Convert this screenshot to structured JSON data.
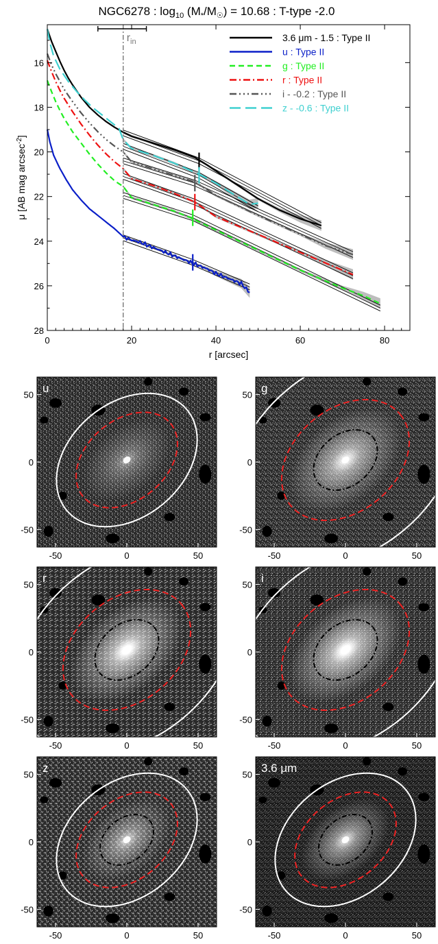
{
  "colors": {
    "spitzer": "#000000",
    "u": "#0a1fc8",
    "g": "#22ee22",
    "r": "#ee1111",
    "i": "#555555",
    "z": "#3fd0d0",
    "fit": "#000000",
    "band": "#9a9a9a",
    "rin": "#777777",
    "ellipse_outer": "#ffffff",
    "ellipse_mid": "#ee2222",
    "ellipse_inner": "#000000"
  },
  "title_parts": {
    "prefix": "NGC6278 : log",
    "sub": "10",
    "mid": " (M",
    "star": "*",
    "slash": "/M",
    "sun": "☉",
    "suffix": ") = 10.68 : T-type -2.0"
  },
  "rin_label": {
    "main": "r",
    "sub": "in"
  },
  "chart_data": [
    {
      "type": "line",
      "xlabel": "r [arcsec]",
      "ylabel_parts": {
        "main": "μ [AB mag arcsec",
        "sup": "-2",
        "end": "]"
      },
      "xlim": [
        0,
        86
      ],
      "ylim": [
        28,
        14.3
      ],
      "y_inverted": true,
      "xticks": [
        0,
        20,
        40,
        60,
        80
      ],
      "yticks": [
        16,
        18,
        20,
        22,
        24,
        26,
        28
      ],
      "rin": 18,
      "rin_range": [
        12,
        23.5
      ],
      "legend_position": "top-right",
      "series": [
        {
          "key": "spitzer",
          "name": "3.6 μm - 1.5 : Type II",
          "dash": "",
          "profile": [
            [
              0,
              14.5
            ],
            [
              1,
              15.05
            ],
            [
              2,
              15.5
            ],
            [
              3,
              15.95
            ],
            [
              4,
              16.35
            ],
            [
              5,
              16.7
            ],
            [
              6,
              17
            ],
            [
              8,
              17.55
            ],
            [
              10,
              18
            ],
            [
              12,
              18.35
            ],
            [
              14,
              18.65
            ],
            [
              16,
              18.9
            ],
            [
              18,
              19.12
            ],
            [
              20,
              19.3
            ],
            [
              25,
              19.6
            ],
            [
              30,
              19.9
            ],
            [
              35,
              20.25
            ],
            [
              38,
              20.6
            ],
            [
              42,
              21.1
            ],
            [
              46,
              21.6
            ],
            [
              50,
              22.1
            ],
            [
              55,
              22.6
            ],
            [
              60,
              23
            ],
            [
              65,
              23.3
            ]
          ],
          "fit": [
            [
              18,
              19.15
            ],
            [
              36,
              20.4
            ],
            [
              65,
              23.3
            ]
          ],
          "break": 36
        },
        {
          "key": "u",
          "name": "u : Type II",
          "dash": "",
          "profile": [
            [
              0,
              19
            ],
            [
              0.6,
              19.55
            ],
            [
              1.5,
              20.15
            ],
            [
              3,
              20.75
            ],
            [
              4.5,
              21.25
            ],
            [
              6,
              21.7
            ],
            [
              8,
              22.15
            ],
            [
              10,
              22.55
            ],
            [
              12,
              22.85
            ],
            [
              14,
              23.15
            ],
            [
              16,
              23.45
            ],
            [
              18,
              23.8
            ],
            [
              20,
              23.95
            ],
            [
              22,
              24.05
            ],
            [
              24,
              24.2
            ],
            [
              26,
              24.35
            ],
            [
              28,
              24.5
            ],
            [
              30,
              24.65
            ],
            [
              32,
              24.8
            ],
            [
              34,
              24.95
            ],
            [
              36,
              25.1
            ],
            [
              38,
              25.25
            ],
            [
              40,
              25.45
            ],
            [
              42,
              25.6
            ],
            [
              44,
              25.75
            ],
            [
              46,
              25.9
            ],
            [
              48,
              26.3
            ]
          ],
          "fit": [
            [
              18,
              23.85
            ],
            [
              34.5,
              24.95
            ],
            [
              48,
              26.05
            ]
          ],
          "break": 34.5
        },
        {
          "key": "g",
          "name": "g : Type II",
          "dash": "8,5",
          "profile": [
            [
              0,
              16.8
            ],
            [
              1,
              17.3
            ],
            [
              2,
              17.75
            ],
            [
              3,
              18.15
            ],
            [
              4,
              18.5
            ],
            [
              6,
              19.1
            ],
            [
              8,
              19.6
            ],
            [
              10,
              20.1
            ],
            [
              12,
              20.55
            ],
            [
              14,
              20.95
            ],
            [
              16,
              21.3
            ],
            [
              18,
              21.55
            ],
            [
              20,
              22.05
            ],
            [
              25,
              22.35
            ],
            [
              30,
              22.65
            ],
            [
              34,
              22.95
            ],
            [
              40,
              23.5
            ],
            [
              50,
              24.4
            ],
            [
              60,
              25.3
            ],
            [
              70,
              26.1
            ],
            [
              75,
              26.45
            ],
            [
              79,
              26.8
            ]
          ],
          "fit": [
            [
              18,
              21.95
            ],
            [
              34.5,
              22.95
            ],
            [
              79,
              27.0
            ]
          ],
          "break": 34.5
        },
        {
          "key": "r",
          "name": "r : Type II",
          "dash": "10,4,2,4",
          "profile": [
            [
              0,
              15.9
            ],
            [
              1,
              16.4
            ],
            [
              2,
              16.85
            ],
            [
              3,
              17.25
            ],
            [
              4,
              17.6
            ],
            [
              6,
              18.2
            ],
            [
              8,
              18.75
            ],
            [
              10,
              19.25
            ],
            [
              12,
              19.7
            ],
            [
              14,
              20.1
            ],
            [
              16,
              20.45
            ],
            [
              18,
              20.75
            ],
            [
              20,
              21.2
            ],
            [
              25,
              21.5
            ],
            [
              30,
              21.85
            ],
            [
              35,
              22.25
            ],
            [
              40,
              22.9
            ],
            [
              50,
              23.7
            ],
            [
              60,
              24.5
            ],
            [
              65,
              24.9
            ],
            [
              70,
              25.3
            ],
            [
              72.5,
              25.5
            ]
          ],
          "fit": [
            [
              18,
              21.1
            ],
            [
              35,
              22.25
            ],
            [
              72.5,
              25.55
            ]
          ],
          "break": 35
        },
        {
          "key": "i",
          "name": "i - -0.2 : Type II",
          "dash": "10,4,2,4,2,4,2,4",
          "profile": [
            [
              0,
              15.6
            ],
            [
              1,
              16.1
            ],
            [
              2,
              16.5
            ],
            [
              3,
              16.85
            ],
            [
              4,
              17.2
            ],
            [
              6,
              17.75
            ],
            [
              8,
              18.25
            ],
            [
              10,
              18.7
            ],
            [
              12,
              19.1
            ],
            [
              14,
              19.45
            ],
            [
              16,
              19.75
            ],
            [
              18,
              20.0
            ],
            [
              20,
              20.45
            ],
            [
              25,
              20.75
            ],
            [
              30,
              21.05
            ],
            [
              35,
              21.35
            ],
            [
              40,
              21.95
            ],
            [
              50,
              22.85
            ],
            [
              60,
              23.7
            ],
            [
              66,
              24.2
            ],
            [
              72.5,
              24.6
            ]
          ],
          "fit": [
            [
              18,
              20.4
            ],
            [
              35,
              21.4
            ],
            [
              72.5,
              24.6
            ]
          ],
          "break": 35
        },
        {
          "key": "z",
          "name": "z - -0.6 : Type II",
          "dash": "16,7",
          "profile": [
            [
              0,
              14.5
            ],
            [
              0.6,
              15.1
            ],
            [
              1.5,
              15.7
            ],
            [
              3,
              16.3
            ],
            [
              5,
              16.85
            ],
            [
              7,
              17.3
            ],
            [
              9,
              17.7
            ],
            [
              11,
              18.05
            ],
            [
              13,
              18.35
            ],
            [
              15,
              18.65
            ],
            [
              17,
              18.95
            ],
            [
              18,
              19.45
            ],
            [
              20,
              19.85
            ],
            [
              25,
              20.15
            ],
            [
              30,
              20.5
            ],
            [
              36,
              21.0
            ],
            [
              40,
              21.4
            ],
            [
              45,
              22.0
            ],
            [
              48,
              22.35
            ],
            [
              50,
              22.3
            ]
          ],
          "fit": [
            [
              18,
              19.75
            ],
            [
              36,
              21.05
            ],
            [
              50,
              22.55
            ]
          ],
          "break": 36
        }
      ]
    },
    {
      "type": "heatmap",
      "panels": [
        {
          "key": "u",
          "label": "u",
          "scale": 0.78,
          "ell_outer": [
            40,
            55
          ],
          "ell_mid": [
            28,
            40
          ],
          "ell_inner": null,
          "image_brightness": 0.55
        },
        {
          "key": "g",
          "label": "g",
          "scale": 1.0,
          "ell_outer": [
            64,
            89
          ],
          "ell_mid": [
            36,
            50
          ],
          "ell_inner": [
            18,
            25
          ],
          "image_brightness": 1.0
        },
        {
          "key": "r",
          "label": "r",
          "scale": 1.0,
          "ell_outer": [
            62,
            87
          ],
          "ell_mid": [
            36,
            50
          ],
          "ell_inner": [
            18,
            25
          ],
          "image_brightness": 1.15
        },
        {
          "key": "i",
          "label": "i",
          "scale": 1.0,
          "ell_outer": [
            62,
            87
          ],
          "ell_mid": [
            36,
            50
          ],
          "ell_inner": [
            18,
            25
          ],
          "image_brightness": 1.15
        },
        {
          "key": "z",
          "label": "z",
          "scale": 0.78,
          "ell_outer": [
            40,
            55
          ],
          "ell_mid": [
            28,
            40
          ],
          "ell_inner": [
            15,
            21
          ],
          "image_brightness": 0.8
        },
        {
          "key": "spitzer",
          "label": "3.6 μm",
          "scale": 0.78,
          "ell_outer": [
            40,
            55
          ],
          "ell_mid": [
            28,
            40
          ],
          "ell_inner": [
            15,
            21
          ],
          "image_brightness": 0.9
        }
      ],
      "xticks": [
        -50,
        0,
        50
      ],
      "yticks": [
        50,
        0,
        -50
      ],
      "extent": [
        -63,
        63
      ]
    }
  ]
}
